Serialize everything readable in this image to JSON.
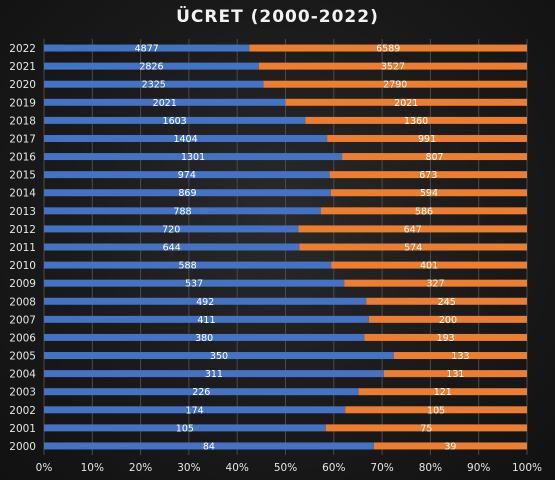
{
  "chart_data": {
    "type": "bar",
    "orientation": "horizontal",
    "stacking": "percent",
    "title": "ÜCRET (2000-2022)",
    "categories": [
      "2000",
      "2001",
      "2002",
      "2003",
      "2004",
      "2005",
      "2006",
      "2007",
      "2008",
      "2009",
      "2010",
      "2011",
      "2012",
      "2013",
      "2014",
      "2015",
      "2016",
      "2017",
      "2018",
      "2019",
      "2020",
      "2021",
      "2022"
    ],
    "series": [
      {
        "color": "#4472c4",
        "values": [
          84,
          105,
          174,
          226,
          311,
          350,
          380,
          411,
          492,
          537,
          588,
          644,
          720,
          788,
          869,
          974,
          1301,
          1404,
          1603,
          2021,
          2325,
          2826,
          4877
        ]
      },
      {
        "color": "#ed7d31",
        "values": [
          39,
          75,
          105,
          121,
          131,
          133,
          193,
          200,
          245,
          327,
          401,
          574,
          647,
          586,
          594,
          673,
          807,
          991,
          1360,
          2021,
          2790,
          3527,
          6589
        ]
      }
    ],
    "x_ticks": [
      "0%",
      "10%",
      "20%",
      "30%",
      "40%",
      "50%",
      "60%",
      "70%",
      "80%",
      "90%",
      "100%"
    ],
    "xlim": [
      0,
      100
    ],
    "grid": true,
    "legend": "none"
  }
}
